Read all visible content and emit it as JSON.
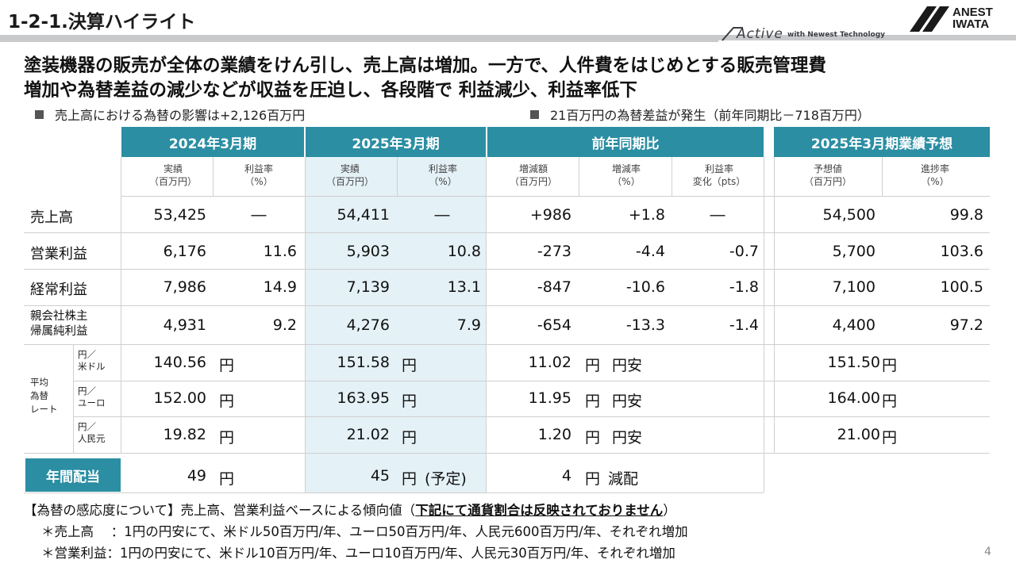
{
  "header": {
    "title": "1-2-1.決算ハイライト",
    "tagline_active": "Active",
    "tagline_with": "with Newest Technology",
    "logo_line1": "ANEST",
    "logo_line2": "IWATA"
  },
  "headline": {
    "line1": "塗装機器の販売が全体の業績をけん引し、売上高は増加。一方で、人件費をはじめとする販売管理費",
    "line2": "増加や為替差益の減少などが収益を圧迫し、各段階で 利益減少、利益率低下"
  },
  "bullets": {
    "left": "売上高における為替の影響は+2,126百万円",
    "right": "21百万円の為替差益が発生（前年同期比－718百万円）"
  },
  "table": {
    "groups": {
      "fy2024": "2024年3月期",
      "fy2025": "2025年3月期",
      "yoy": "前年同期比",
      "forecast": "2025年3月期業績予想"
    },
    "subheaders": {
      "actual_l1": "実績",
      "actual_l2": "（百万円）",
      "margin_l1": "利益率",
      "margin_l2": "（%）",
      "chg_l1": "増減額",
      "chg_l2": "（百万円）",
      "chgrate_l1": "増減率",
      "chgrate_l2": "（%）",
      "marginchg_l1": "利益率",
      "marginchg_l2": "変化（pts）",
      "fc_l1": "予想値",
      "fc_l2": "（百万円）",
      "prog_l1": "進捗率",
      "prog_l2": "（%）"
    },
    "rows": [
      {
        "label": "売上高",
        "a24": "53,425",
        "m24": "―",
        "a25": "54,411",
        "m25": "―",
        "chg": "+986",
        "rate": "+1.8",
        "mchg": "―",
        "fc": "54,500",
        "prog": "99.8"
      },
      {
        "label": "営業利益",
        "a24": "6,176",
        "m24": "11.6",
        "a25": "5,903",
        "m25": "10.8",
        "chg": "-273",
        "rate": "-4.4",
        "mchg": "-0.7",
        "fc": "5,700",
        "prog": "103.6"
      },
      {
        "label": "経常利益",
        "a24": "7,986",
        "m24": "14.9",
        "a25": "7,139",
        "m25": "13.1",
        "chg": "-847",
        "rate": "-10.6",
        "mchg": "-1.8",
        "fc": "7,100",
        "prog": "100.5"
      },
      {
        "label_l1": "親会社株主",
        "label_l2": "帰属純利益",
        "a24": "4,931",
        "m24": "9.2",
        "a25": "4,276",
        "m25": "7.9",
        "chg": "-654",
        "rate": "-13.3",
        "mchg": "-1.4",
        "fc": "4,400",
        "prog": "97.2"
      }
    ],
    "fx_label_l1": "平均",
    "fx_label_l2": "為替",
    "fx_label_l3": "レート",
    "fx": [
      {
        "ccy_l1": "円／",
        "ccy_l2": "米ドル",
        "r24": "140.56",
        "r25": "151.58",
        "chg": "11.02",
        "dir": "円安",
        "fc": "151.50"
      },
      {
        "ccy_l1": "円／",
        "ccy_l2": "ユーロ",
        "r24": "152.00",
        "r25": "163.95",
        "chg": "11.95",
        "dir": "円安",
        "fc": "164.00"
      },
      {
        "ccy_l1": "円／",
        "ccy_l2": "人民元",
        "r24": "19.82",
        "r25": "21.02",
        "chg": "1.20",
        "dir": "円安",
        "fc": "21.00"
      }
    ],
    "yen": "円",
    "dividend": {
      "label": "年間配当",
      "d24": "49",
      "d25": "45",
      "d25_note": "(予定)",
      "chg": "4",
      "dir": "減配"
    }
  },
  "footnotes": {
    "line1_pre": "【為替の感応度について】売上高、営業利益ベースによる傾向値（",
    "line1_bold": "下記にて通貨割合は反映されておりません",
    "line1_post": "）",
    "line2": "＊売上高　 ：1円の円安にて、米ドル50百万円/年、ユーロ50百万円/年、人民元600百万円/年、それぞれ増加",
    "line3": "＊営業利益：1円の円安にて、米ドル10百万円/年、ユーロ10百万円/年、人民元30百万円/年、それぞれ増加"
  },
  "page_number": "4"
}
